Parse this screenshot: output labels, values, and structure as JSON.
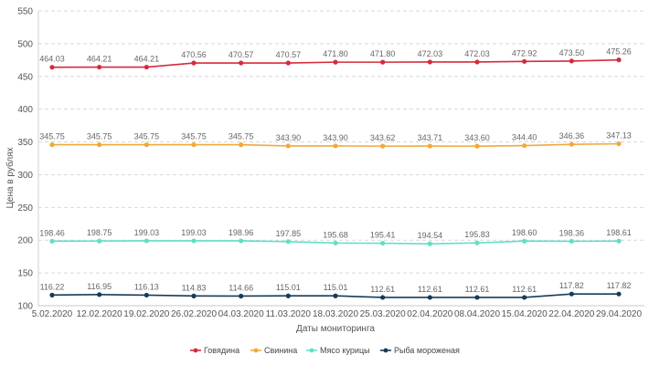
{
  "chart_data": {
    "type": "line",
    "xlabel": "Даты мониторинга",
    "ylabel": "Цена в рублях",
    "ylim": [
      100,
      550
    ],
    "yticks": [
      100,
      150,
      200,
      250,
      300,
      350,
      400,
      450,
      500,
      550
    ],
    "grid": "horizontal dashed",
    "legend_position": "bottom",
    "categories": [
      "5.02.2020",
      "12.02.2020",
      "19.02.2020",
      "26.02.2020",
      "04.03.2020",
      "11.03.2020",
      "18.03.2020",
      "25.03.2020",
      "02.04.2020",
      "08.04.2020",
      "15.04.2020",
      "22.04.2020",
      "29.04.2020"
    ],
    "series": [
      {
        "name": "Говядина",
        "color": "#d42b3c",
        "values": [
          464.03,
          464.21,
          464.21,
          470.56,
          470.57,
          470.57,
          471.8,
          471.8,
          472.03,
          472.03,
          472.92,
          473.5,
          475.26
        ],
        "labels": [
          "464.03",
          "464.21",
          "464.21",
          "470.56",
          "470.57",
          "470.57",
          "471.80",
          "471.80",
          "472.03",
          "472.03",
          "472.92",
          "473.50",
          "475.26"
        ]
      },
      {
        "name": "Свинина",
        "color": "#f0a93b",
        "values": [
          345.75,
          345.75,
          345.75,
          345.75,
          345.75,
          343.9,
          343.9,
          343.62,
          343.71,
          343.6,
          344.4,
          346.36,
          347.13
        ],
        "labels": [
          "345.75",
          "345.75",
          "345.75",
          "345.75",
          "345.75",
          "343.90",
          "343.90",
          "343.62",
          "343.71",
          "343.60",
          "344.40",
          "346.36",
          "347.13"
        ]
      },
      {
        "name": "Мясо курицы",
        "color": "#5fe0c8",
        "values": [
          198.46,
          198.75,
          199.03,
          199.03,
          198.96,
          197.85,
          195.68,
          195.41,
          194.54,
          195.83,
          198.6,
          198.36,
          198.61
        ],
        "labels": [
          "198.46",
          "198.75",
          "199.03",
          "199.03",
          "198.96",
          "197.85",
          "195.68",
          "195.41",
          "194.54",
          "195.83",
          "198.60",
          "198.36",
          "198.61"
        ]
      },
      {
        "name": "Рыба мороженая",
        "color": "#163b5a",
        "values": [
          116.22,
          116.95,
          116.13,
          114.83,
          114.66,
          115.01,
          115.01,
          112.61,
          112.61,
          112.61,
          112.61,
          117.82,
          117.82
        ],
        "labels": [
          "116.22",
          "116.95",
          "116.13",
          "114.83",
          "114.66",
          "115.01",
          "115.01",
          "112.61",
          "112.61",
          "112.61",
          "112.61",
          "117.82",
          "117.82"
        ]
      }
    ]
  }
}
